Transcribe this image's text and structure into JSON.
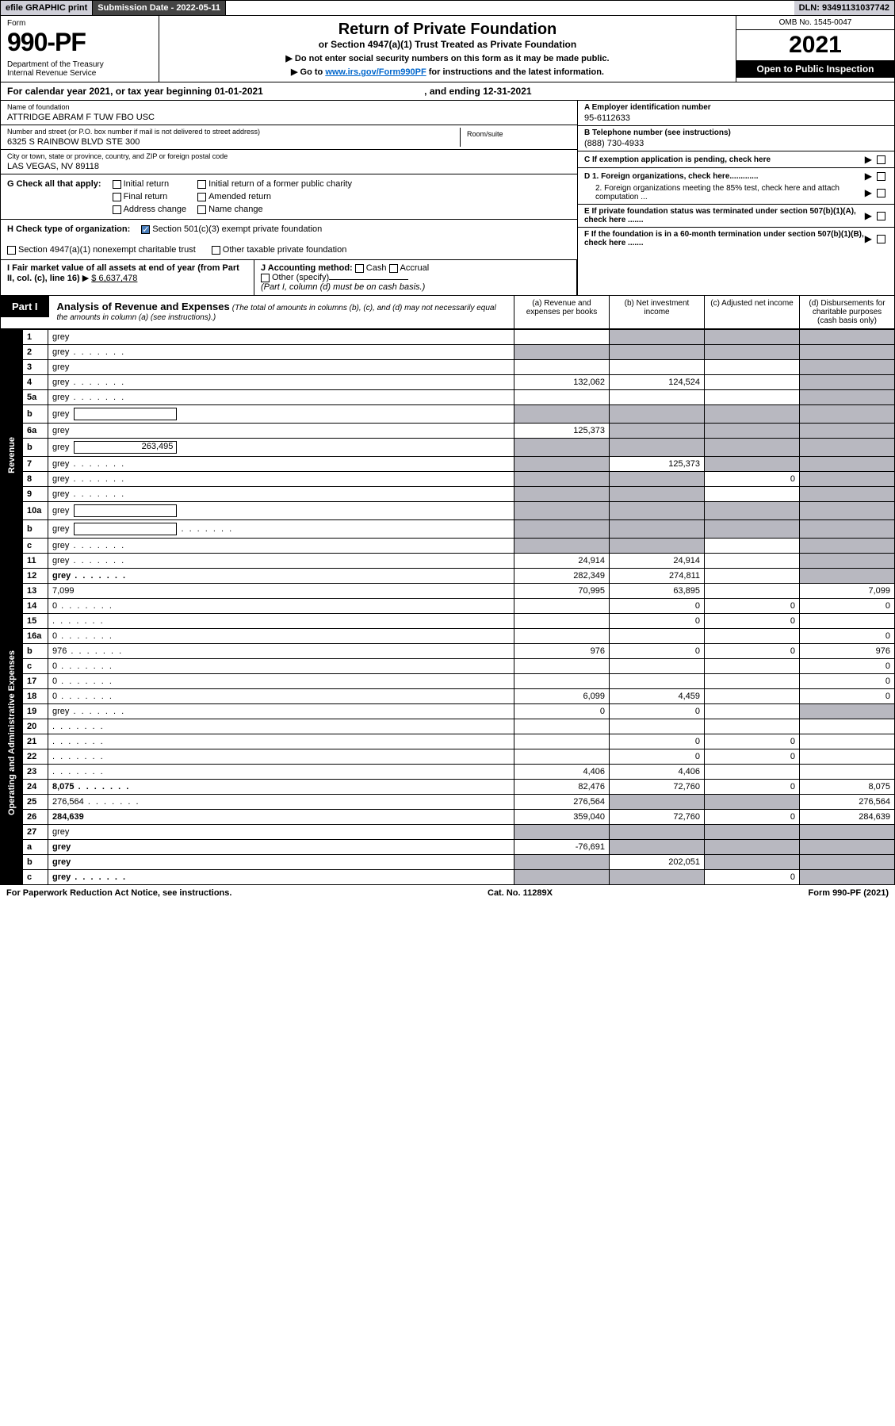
{
  "topbar": {
    "efile": "efile GRAPHIC print",
    "subdate_label": "Submission Date - 2022-05-11",
    "dln": "DLN: 93491131037742"
  },
  "header": {
    "form_label": "Form",
    "form_number": "990-PF",
    "dept": "Department of the Treasury\nInternal Revenue Service",
    "title": "Return of Private Foundation",
    "subtitle": "or Section 4947(a)(1) Trust Treated as Private Foundation",
    "note1": "▶ Do not enter social security numbers on this form as it may be made public.",
    "note2_pre": "▶ Go to ",
    "note2_link": "www.irs.gov/Form990PF",
    "note2_post": " for instructions and the latest information.",
    "omb": "OMB No. 1545-0047",
    "tax_year": "2021",
    "open_pub": "Open to Public Inspection"
  },
  "cal_year": {
    "text_pre": "For calendar year 2021, or tax year beginning ",
    "begin": "01-01-2021",
    "text_mid": " , and ending ",
    "end": "12-31-2021"
  },
  "entity": {
    "name_label": "Name of foundation",
    "name": "ATTRIDGE ABRAM F TUW FBO USC",
    "addr_label": "Number and street (or P.O. box number if mail is not delivered to street address)",
    "addr": "6325 S RAINBOW BLVD STE 300",
    "room_label": "Room/suite",
    "city_label": "City or town, state or province, country, and ZIP or foreign postal code",
    "city": "LAS VEGAS, NV  89118",
    "ein_label": "A Employer identification number",
    "ein": "95-6112633",
    "phone_label": "B Telephone number (see instructions)",
    "phone": "(888) 730-4933",
    "c_label": "C If exemption application is pending, check here",
    "d1": "D 1. Foreign organizations, check here.............",
    "d2": "2. Foreign organizations meeting the 85% test, check here and attach computation ...",
    "e_label": "E  If private foundation status was terminated under section 507(b)(1)(A), check here .......",
    "f_label": "F  If the foundation is in a 60-month termination under section 507(b)(1)(B), check here ......."
  },
  "section_g": {
    "label": "G Check all that apply:",
    "opts": [
      "Initial return",
      "Final return",
      "Address change",
      "Initial return of a former public charity",
      "Amended return",
      "Name change"
    ]
  },
  "section_h": {
    "label": "H Check type of organization:",
    "opt1": "Section 501(c)(3) exempt private foundation",
    "opt2": "Section 4947(a)(1) nonexempt charitable trust",
    "opt3": "Other taxable private foundation"
  },
  "section_i": {
    "label": "I Fair market value of all assets at end of year (from Part II, col. (c), line 16)",
    "value": "$  6,637,478"
  },
  "section_j": {
    "label": "J Accounting method:",
    "opts": [
      "Cash",
      "Accrual"
    ],
    "other": "Other (specify)",
    "note": "(Part I, column (d) must be on cash basis.)"
  },
  "part1": {
    "tab": "Part I",
    "title": "Analysis of Revenue and Expenses",
    "note": "(The total of amounts in columns (b), (c), and (d) may not necessarily equal the amounts in column (a) (see instructions).)",
    "cols": {
      "a": "(a) Revenue and expenses per books",
      "b": "(b) Net investment income",
      "c": "(c) Adjusted net income",
      "d": "(d) Disbursements for charitable purposes (cash basis only)"
    }
  },
  "side_labels": {
    "revenue": "Revenue",
    "expenses": "Operating and Administrative Expenses"
  },
  "rows": [
    {
      "n": "1",
      "d": "grey",
      "a": "",
      "b": "grey",
      "c": "grey"
    },
    {
      "n": "2",
      "d": "grey",
      "dots": true,
      "a": "grey",
      "b": "grey",
      "c": "grey"
    },
    {
      "n": "3",
      "d": "grey",
      "a": "",
      "b": "",
      "c": ""
    },
    {
      "n": "4",
      "d": "grey",
      "dots": true,
      "a": "132,062",
      "b": "124,524",
      "c": ""
    },
    {
      "n": "5a",
      "d": "grey",
      "dots": true,
      "a": "",
      "b": "",
      "c": ""
    },
    {
      "n": "b",
      "d": "grey",
      "sub": true,
      "a": "grey",
      "b": "grey",
      "c": "grey"
    },
    {
      "n": "6a",
      "d": "grey",
      "a": "125,373",
      "b": "grey",
      "c": "grey"
    },
    {
      "n": "b",
      "d": "grey",
      "sub": true,
      "subval": "263,495",
      "a": "grey",
      "b": "grey",
      "c": "grey"
    },
    {
      "n": "7",
      "d": "grey",
      "dots": true,
      "a": "grey",
      "b": "125,373",
      "c": "grey"
    },
    {
      "n": "8",
      "d": "grey",
      "dots": true,
      "a": "grey",
      "b": "grey",
      "c": "0"
    },
    {
      "n": "9",
      "d": "grey",
      "dots": true,
      "a": "grey",
      "b": "grey",
      "c": ""
    },
    {
      "n": "10a",
      "d": "grey",
      "sub": true,
      "a": "grey",
      "b": "grey",
      "c": "grey"
    },
    {
      "n": "b",
      "d": "grey",
      "dots": true,
      "sub": true,
      "a": "grey",
      "b": "grey",
      "c": "grey"
    },
    {
      "n": "c",
      "d": "grey",
      "dots": true,
      "a": "grey",
      "b": "grey",
      "c": ""
    },
    {
      "n": "11",
      "d": "grey",
      "dots": true,
      "a": "24,914",
      "b": "24,914",
      "c": ""
    },
    {
      "n": "12",
      "d": "grey",
      "dots": true,
      "bold": true,
      "a": "282,349",
      "b": "274,811",
      "c": ""
    },
    {
      "n": "13",
      "d": "7,099",
      "a": "70,995",
      "b": "63,895",
      "c": ""
    },
    {
      "n": "14",
      "d": "0",
      "dots": true,
      "a": "",
      "b": "0",
      "c": "0"
    },
    {
      "n": "15",
      "d": "",
      "dots": true,
      "a": "",
      "b": "0",
      "c": "0"
    },
    {
      "n": "16a",
      "d": "0",
      "dots": true,
      "a": "",
      "b": "",
      "c": ""
    },
    {
      "n": "b",
      "d": "976",
      "dots": true,
      "a": "976",
      "b": "0",
      "c": "0"
    },
    {
      "n": "c",
      "d": "0",
      "dots": true,
      "a": "",
      "b": "",
      "c": ""
    },
    {
      "n": "17",
      "d": "0",
      "dots": true,
      "a": "",
      "b": "",
      "c": ""
    },
    {
      "n": "18",
      "d": "0",
      "dots": true,
      "a": "6,099",
      "b": "4,459",
      "c": ""
    },
    {
      "n": "19",
      "d": "grey",
      "dots": true,
      "a": "0",
      "b": "0",
      "c": ""
    },
    {
      "n": "20",
      "d": "",
      "dots": true,
      "a": "",
      "b": "",
      "c": ""
    },
    {
      "n": "21",
      "d": "",
      "dots": true,
      "a": "",
      "b": "0",
      "c": "0"
    },
    {
      "n": "22",
      "d": "",
      "dots": true,
      "a": "",
      "b": "0",
      "c": "0"
    },
    {
      "n": "23",
      "d": "",
      "dots": true,
      "a": "4,406",
      "b": "4,406",
      "c": ""
    },
    {
      "n": "24",
      "d": "8,075",
      "dots": true,
      "bold": true,
      "a": "82,476",
      "b": "72,760",
      "c": "0"
    },
    {
      "n": "25",
      "d": "276,564",
      "dots": true,
      "a": "276,564",
      "b": "grey",
      "c": "grey"
    },
    {
      "n": "26",
      "d": "284,639",
      "bold": true,
      "a": "359,040",
      "b": "72,760",
      "c": "0"
    },
    {
      "n": "27",
      "d": "grey",
      "a": "grey",
      "b": "grey",
      "c": "grey"
    },
    {
      "n": "a",
      "d": "grey",
      "bold": true,
      "a": "-76,691",
      "b": "grey",
      "c": "grey"
    },
    {
      "n": "b",
      "d": "grey",
      "bold": true,
      "a": "grey",
      "b": "202,051",
      "c": "grey"
    },
    {
      "n": "c",
      "d": "grey",
      "dots": true,
      "bold": true,
      "a": "grey",
      "b": "grey",
      "c": "0"
    }
  ],
  "footer": {
    "left": "For Paperwork Reduction Act Notice, see instructions.",
    "mid": "Cat. No. 11289X",
    "right": "Form 990-PF (2021)"
  },
  "colors": {
    "grey_cell": "#b8b8c0",
    "header_grey": "#cfcfd8",
    "link": "#0066cc",
    "check_blue": "#4a7ebb"
  }
}
